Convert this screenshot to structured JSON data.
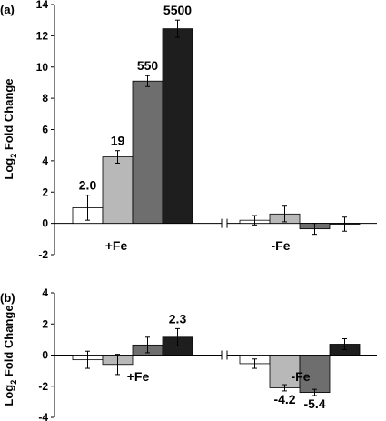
{
  "chart_data": [
    {
      "type": "bar",
      "panel_label": "(a)",
      "ylabel": "Log",
      "ylabel_sub": "2",
      "ylabel_rest": " Fold Change",
      "ylim": [
        -2,
        14
      ],
      "yticks": [
        -2,
        0,
        2,
        4,
        6,
        8,
        10,
        12,
        14
      ],
      "grid": false,
      "categories": [
        "+Fe",
        "-Fe"
      ],
      "series": [
        {
          "color": "#ffffff",
          "values": [
            1.0,
            0.2
          ],
          "errors": [
            0.8,
            0.3
          ],
          "labels": [
            "2.0",
            ""
          ]
        },
        {
          "color": "#b8b8b8",
          "values": [
            4.25,
            0.6
          ],
          "errors": [
            0.4,
            0.5
          ],
          "labels": [
            "19",
            ""
          ]
        },
        {
          "color": "#6e6e6e",
          "values": [
            9.1,
            -0.35
          ],
          "errors": [
            0.35,
            0.35
          ],
          "labels": [
            "550",
            ""
          ]
        },
        {
          "color": "#1e1e1e",
          "values": [
            12.45,
            -0.05
          ],
          "errors": [
            0.55,
            0.45
          ],
          "labels": [
            "5500",
            ""
          ]
        }
      ]
    },
    {
      "type": "bar",
      "panel_label": "(b)",
      "ylabel": "Log",
      "ylabel_sub": "2",
      "ylabel_rest": " Fold Change",
      "ylim": [
        -4,
        4
      ],
      "yticks": [
        -4,
        -2,
        0,
        2,
        4
      ],
      "grid": false,
      "categories": [
        "+Fe",
        "-Fe"
      ],
      "series": [
        {
          "color": "#ffffff",
          "values": [
            -0.3,
            -0.55
          ],
          "errors": [
            0.55,
            0.3
          ],
          "labels": [
            "",
            ""
          ]
        },
        {
          "color": "#b8b8b8",
          "values": [
            -0.6,
            -2.1
          ],
          "errors": [
            0.65,
            0.2
          ],
          "labels": [
            "",
            "-4.2"
          ]
        },
        {
          "color": "#6e6e6e",
          "values": [
            0.65,
            -2.4
          ],
          "errors": [
            0.5,
            0.2
          ],
          "labels": [
            "",
            "-5.4"
          ]
        },
        {
          "color": "#1e1e1e",
          "values": [
            1.15,
            0.7
          ],
          "errors": [
            0.55,
            0.35
          ],
          "labels": [
            "2.3",
            ""
          ]
        }
      ]
    }
  ]
}
